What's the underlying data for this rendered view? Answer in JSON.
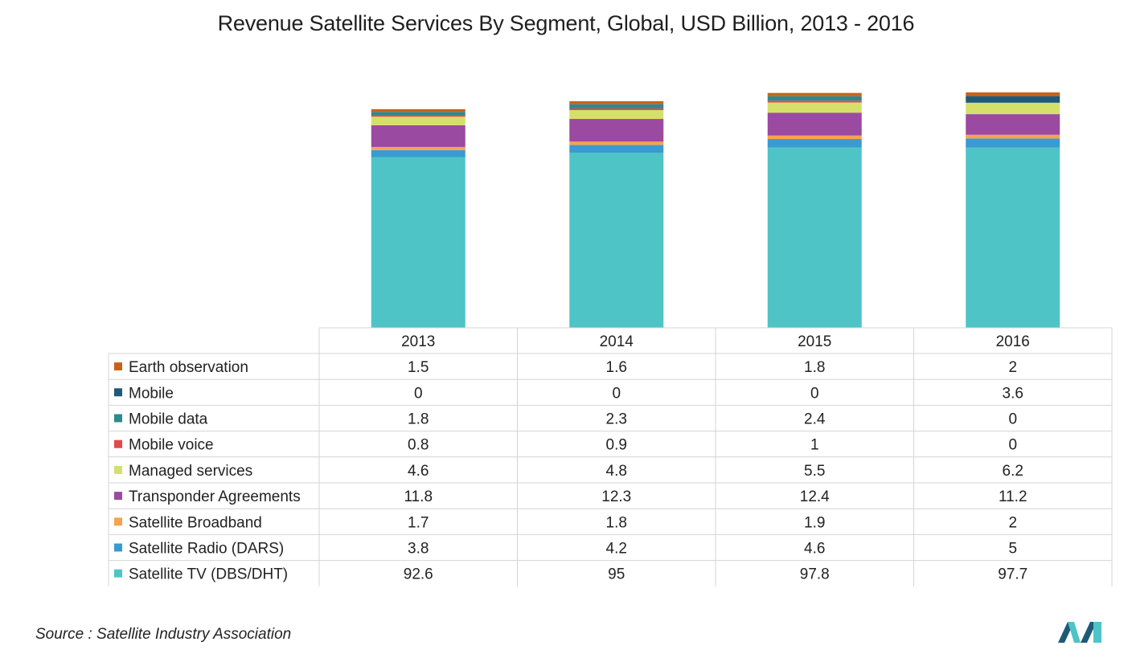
{
  "chart_data": {
    "type": "bar",
    "stacked": true,
    "title": "Revenue Satellite Services By Segment, Global, USD Billion, 2013 - 2016",
    "xlabel": "",
    "ylabel": "",
    "categories": [
      "2013",
      "2014",
      "2015",
      "2016"
    ],
    "legend_placement": "data-table-left",
    "grid": false,
    "series": [
      {
        "name": "Satellite TV (DBS/DHT)",
        "color": "#4fc4c6",
        "values": [
          92.6,
          95,
          97.8,
          97.7
        ]
      },
      {
        "name": "Satellite Radio (DARS)",
        "color": "#3a9ad2",
        "values": [
          3.8,
          4.2,
          4.6,
          5
        ]
      },
      {
        "name": "Satellite Broadband",
        "color": "#f8a34c",
        "values": [
          1.7,
          1.8,
          1.9,
          2
        ]
      },
      {
        "name": "Transponder Agreements",
        "color": "#9a4aa0",
        "values": [
          11.8,
          12.3,
          12.4,
          11.2
        ]
      },
      {
        "name": "Managed services",
        "color": "#d5e06a",
        "values": [
          4.6,
          4.8,
          5.5,
          6.2
        ]
      },
      {
        "name": "Mobile voice",
        "color": "#e04a4a",
        "values": [
          0.8,
          0.9,
          1,
          0
        ]
      },
      {
        "name": "Mobile data",
        "color": "#2a8a8e",
        "values": [
          1.8,
          2.3,
          2.4,
          0
        ]
      },
      {
        "name": "Mobile",
        "color": "#1e5a78",
        "values": [
          0,
          0,
          0,
          3.6
        ]
      },
      {
        "name": "Earth observation",
        "color": "#c8621a",
        "values": [
          1.5,
          1.6,
          1.8,
          2
        ]
      }
    ],
    "table_value_labels": [
      [
        "1.5",
        "1.6",
        "1.8",
        "2"
      ],
      [
        "0",
        "0",
        "0",
        "3.6"
      ],
      [
        "1.8",
        "2.3",
        "2.4",
        "0"
      ],
      [
        "0.8",
        "0.9",
        "1",
        "0"
      ],
      [
        "4.6",
        "4.8",
        "5.5",
        "6.2"
      ],
      [
        "11.8",
        "12.3",
        "12.4",
        "11.2"
      ],
      [
        "1.7",
        "1.8",
        "1.9",
        "2"
      ],
      [
        "3.8",
        "4.2",
        "4.6",
        "5"
      ],
      [
        "92.6",
        "95",
        "97.8",
        "97.7"
      ]
    ],
    "table_row_order": [
      "Earth observation",
      "Mobile",
      "Mobile data",
      "Mobile voice",
      "Managed services",
      "Transponder Agreements",
      "Satellite Broadband",
      "Satellite Radio (DARS)",
      "Satellite TV (DBS/DHT)"
    ]
  },
  "source": "Source : Satellite Industry Association",
  "logo": {
    "icon": "mordor-intelligence-logo",
    "colors": [
      "#1e5a78",
      "#4fc4c6"
    ]
  }
}
